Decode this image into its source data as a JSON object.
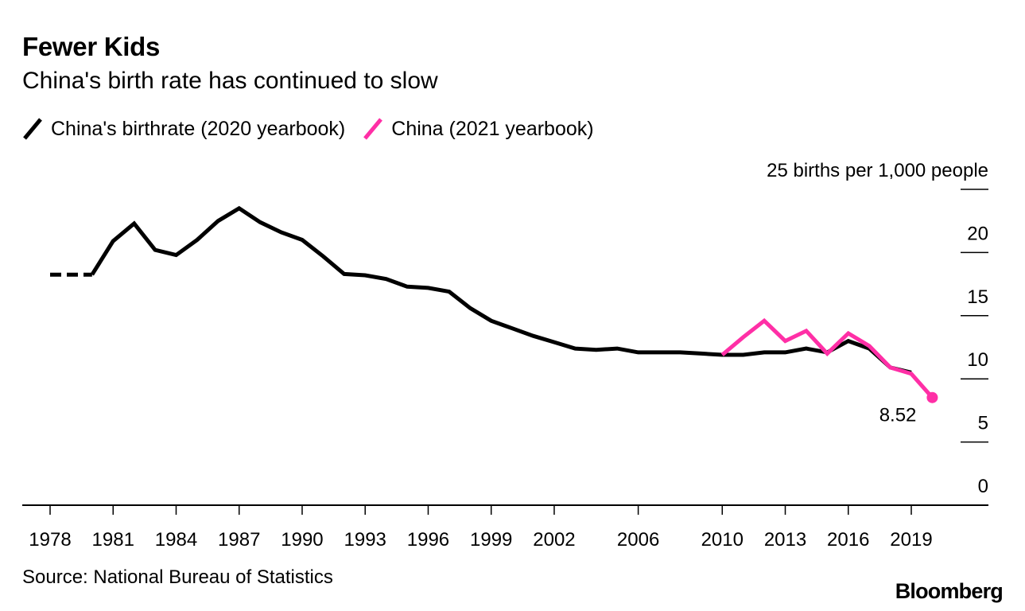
{
  "title": "Fewer Kids",
  "subtitle": "China's birth rate has continued to slow",
  "legend": [
    {
      "label": "China's birthrate (2020 yearbook)",
      "color": "#000000"
    },
    {
      "label": "China (2021 yearbook)",
      "color": "#ff2fa6"
    }
  ],
  "source": "Source: National Bureau of Statistics",
  "logo": "Bloomberg",
  "chart_data": {
    "type": "line",
    "title": "Fewer Kids",
    "subtitle": "China's birth rate has continued to slow",
    "ylabel": "births per 1,000 people",
    "ylim": [
      0,
      25
    ],
    "yticks": [
      0,
      5,
      10,
      15,
      20,
      25
    ],
    "ytick_labels": [
      "0",
      "5",
      "10",
      "15",
      "20",
      "25 births per 1,000 people"
    ],
    "xlim": [
      1978,
      2022
    ],
    "xticks": [
      1978,
      1981,
      1984,
      1987,
      1990,
      1993,
      1996,
      1999,
      2002,
      2006,
      2010,
      2013,
      2016,
      2019
    ],
    "grid": false,
    "legend_position": "top-left",
    "series": [
      {
        "name": "China's birthrate (2020 yearbook)",
        "color": "#000000",
        "dashed_segment": {
          "x": [
            1978,
            1980
          ],
          "y": [
            18.25,
            18.25
          ]
        },
        "x": [
          1980,
          1981,
          1982,
          1983,
          1984,
          1985,
          1986,
          1987,
          1988,
          1989,
          1990,
          1991,
          1992,
          1993,
          1994,
          1995,
          1996,
          1997,
          1998,
          1999,
          2000,
          2001,
          2002,
          2003,
          2004,
          2005,
          2006,
          2007,
          2008,
          2009,
          2010,
          2011,
          2012,
          2013,
          2014,
          2015,
          2016,
          2017,
          2018,
          2019
        ],
        "y": [
          18.25,
          20.9,
          22.3,
          20.2,
          19.8,
          21.0,
          22.5,
          23.5,
          22.4,
          21.6,
          21.0,
          19.7,
          18.3,
          18.2,
          17.9,
          17.3,
          17.2,
          16.9,
          15.6,
          14.6,
          14.0,
          13.4,
          12.9,
          12.4,
          12.3,
          12.4,
          12.1,
          12.1,
          12.1,
          12.0,
          11.9,
          11.9,
          12.1,
          12.1,
          12.4,
          12.1,
          13.0,
          12.4,
          10.9,
          10.5
        ]
      },
      {
        "name": "China (2021 yearbook)",
        "color": "#ff2fa6",
        "x": [
          2010,
          2011,
          2012,
          2013,
          2014,
          2015,
          2016,
          2017,
          2018,
          2019,
          2020
        ],
        "y": [
          11.9,
          13.3,
          14.6,
          13.0,
          13.8,
          12.0,
          13.6,
          12.6,
          10.9,
          10.4,
          8.52
        ]
      }
    ],
    "annotations": [
      {
        "x": 2020,
        "y": 8.52,
        "text": "8.52"
      }
    ]
  }
}
